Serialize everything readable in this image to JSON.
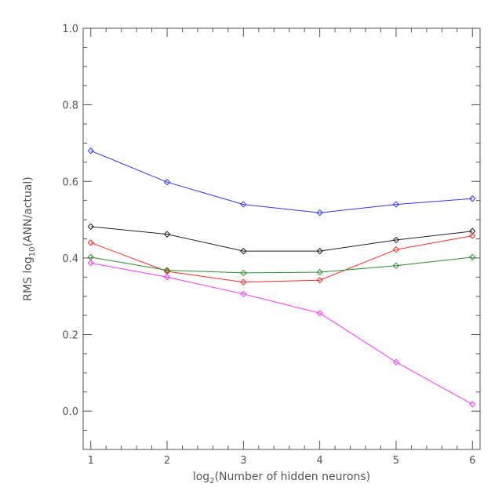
{
  "chart_data": {
    "type": "line",
    "xlabel_parts": {
      "pre": "log",
      "sub": "2",
      "post": "(Number of hidden neurons)"
    },
    "ylabel_parts": {
      "pre": "RMS log",
      "sub": "10",
      "post": "(ANN/actual)"
    },
    "xlim": [
      0.9,
      6.1
    ],
    "ylim": [
      -0.1,
      1.0
    ],
    "x_ticks": [
      1,
      2,
      3,
      4,
      5,
      6
    ],
    "x_tick_labels": [
      "1",
      "2",
      "3",
      "4",
      "5",
      "6"
    ],
    "y_ticks": [
      0.0,
      0.2,
      0.4,
      0.6,
      0.8,
      1.0
    ],
    "y_tick_labels": [
      "0.0",
      "0.2",
      "0.4",
      "0.6",
      "0.8",
      "1.0"
    ],
    "grid": false,
    "marker": "diamond",
    "x": [
      1,
      2,
      3,
      4,
      5,
      6
    ],
    "series": [
      {
        "color": "#3333ff",
        "values": [
          0.68,
          0.598,
          0.54,
          0.518,
          0.54,
          0.555
        ]
      },
      {
        "color": "#222222",
        "values": [
          0.482,
          0.462,
          0.418,
          0.418,
          0.447,
          0.47
        ]
      },
      {
        "color": "#ff2a2a",
        "values": [
          0.44,
          0.365,
          0.337,
          0.342,
          0.422,
          0.458
        ]
      },
      {
        "color": "#2a8a2a",
        "values": [
          0.402,
          0.368,
          0.361,
          0.363,
          0.38,
          0.402
        ]
      },
      {
        "color": "#ff33ff",
        "values": [
          0.387,
          0.35,
          0.306,
          0.256,
          0.128,
          0.018
        ]
      }
    ]
  }
}
